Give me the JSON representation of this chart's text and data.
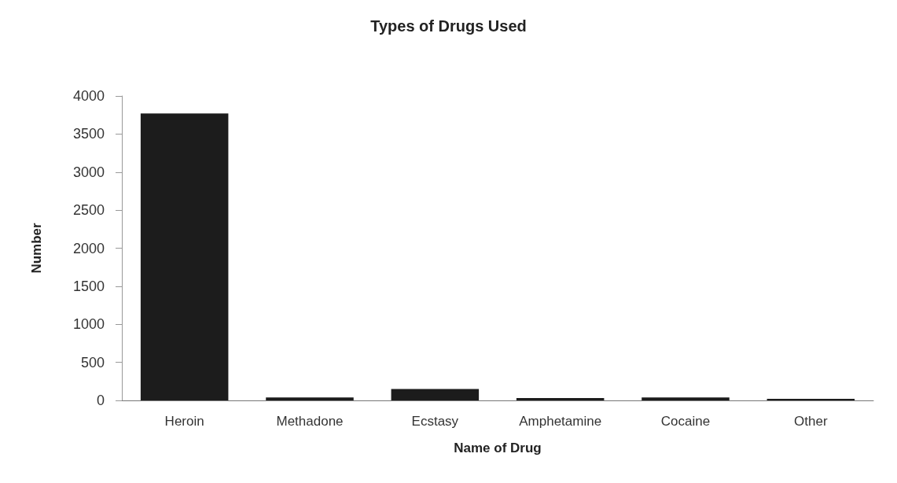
{
  "chart_data": {
    "type": "bar",
    "title": "Types of Drugs Used",
    "xlabel": "Name of Drug",
    "ylabel": "Number",
    "categories": [
      "Heroin",
      "Methadone",
      "Ecstasy",
      "Amphetamine",
      "Cocaine",
      "Other"
    ],
    "values": [
      3770,
      40,
      150,
      30,
      40,
      20
    ],
    "color": "#1c1c1c",
    "ylim": [
      0,
      4000
    ],
    "yticks": [
      0,
      500,
      1000,
      1500,
      2000,
      2500,
      3000,
      3500,
      4000
    ],
    "grid": false
  }
}
